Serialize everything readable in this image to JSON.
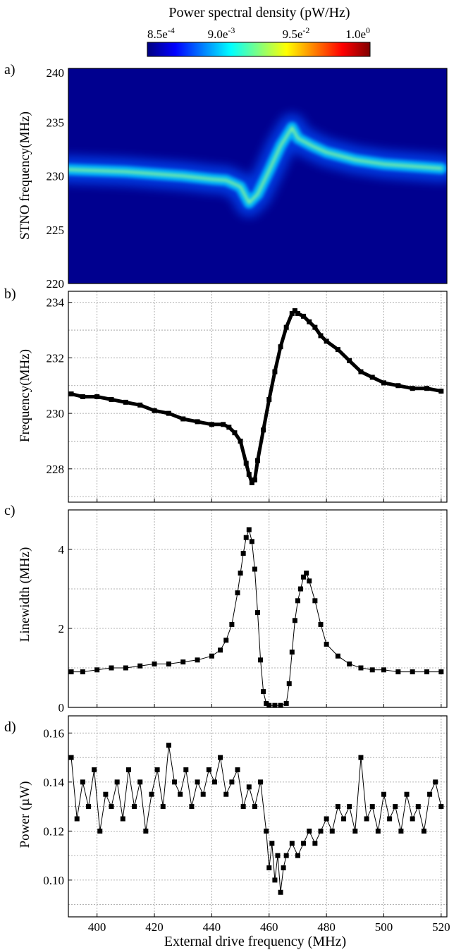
{
  "colorbar": {
    "title": "Power spectral density (pW/Hz)",
    "ticks": [
      {
        "mant": "8.5e",
        "exp": "-4"
      },
      {
        "mant": "9.0e",
        "exp": "-3"
      },
      {
        "mant": "9.5e",
        "exp": "-2"
      },
      {
        "mant": "1.0e",
        "exp": "0"
      }
    ],
    "colors": [
      "#00007f",
      "#0000ff",
      "#0080ff",
      "#00ffff",
      "#80ff80",
      "#ffff00",
      "#ff8000",
      "#ff0000",
      "#7f0000"
    ]
  },
  "x_axis": {
    "label": "External drive frequency (MHz)",
    "lim": [
      390,
      522
    ],
    "ticks": [
      400,
      420,
      440,
      460,
      480,
      500,
      520
    ]
  },
  "panels": [
    {
      "id": "a",
      "label": "a)",
      "ylabel": "STNO frequency(MHz)",
      "ticks": [
        220,
        225,
        230,
        235,
        240
      ]
    },
    {
      "id": "b",
      "label": "b)",
      "ylabel": "Frequency(MHz)",
      "ticks": [
        228,
        230,
        232,
        234
      ]
    },
    {
      "id": "c",
      "label": "c)",
      "ylabel": "Linewidth (MHz)",
      "ticks": [
        0,
        2,
        4
      ]
    },
    {
      "id": "d",
      "label": "d)",
      "ylabel": "Power (µW)",
      "ticks": [
        "0.10",
        "0.12",
        "0.14",
        "0.16"
      ]
    }
  ],
  "chart_data": [
    {
      "type": "heatmap",
      "ylabel": "STNO frequency(MHz)",
      "xlim": [
        390,
        522
      ],
      "ylim": [
        220,
        240
      ],
      "colorscale": "jet",
      "zlim": [
        0.00085,
        1.0
      ],
      "ridge": {
        "x": [
          390,
          400,
          410,
          420,
          430,
          440,
          445,
          450,
          453,
          456,
          460,
          464,
          468,
          470,
          475,
          480,
          490,
          500,
          510,
          520
        ],
        "y": [
          230.6,
          230.5,
          230.4,
          230.2,
          230.0,
          229.7,
          229.6,
          229.0,
          227.5,
          228.3,
          230.5,
          232.8,
          234.5,
          233.5,
          232.8,
          232.2,
          231.5,
          231.1,
          230.9,
          230.7
        ]
      }
    },
    {
      "type": "scatter",
      "ylabel": "Frequency(MHz)",
      "xlim": [
        390,
        522
      ],
      "ylim": [
        226.8,
        234.4
      ],
      "x": [
        391,
        395,
        400,
        405,
        410,
        415,
        420,
        425,
        430,
        435,
        440,
        444,
        446,
        448,
        450,
        452,
        453,
        454,
        455,
        456,
        458,
        460,
        462,
        464,
        466,
        468,
        469,
        470,
        472,
        474,
        476,
        478,
        480,
        484,
        488,
        492,
        496,
        500,
        505,
        510,
        515,
        520
      ],
      "y": [
        230.7,
        230.6,
        230.6,
        230.5,
        230.4,
        230.3,
        230.1,
        230.0,
        229.8,
        229.7,
        229.6,
        229.6,
        229.5,
        229.3,
        229.0,
        228.2,
        227.8,
        227.5,
        227.6,
        228.3,
        229.4,
        230.5,
        231.5,
        232.4,
        233.1,
        233.6,
        233.7,
        233.6,
        233.5,
        233.3,
        233.1,
        232.8,
        232.6,
        232.3,
        231.9,
        231.5,
        231.3,
        231.1,
        231.0,
        230.9,
        230.9,
        230.8
      ]
    },
    {
      "type": "line",
      "ylabel": "Linewidth (MHz)",
      "xlim": [
        390,
        522
      ],
      "ylim": [
        0,
        5.0
      ],
      "x": [
        391,
        395,
        400,
        405,
        410,
        415,
        420,
        425,
        430,
        435,
        440,
        443,
        445,
        447,
        449,
        450,
        451,
        452,
        453,
        454,
        455,
        456,
        457,
        458,
        459,
        460,
        462,
        464,
        466,
        467,
        468,
        469,
        470,
        471,
        472,
        473,
        474,
        476,
        478,
        480,
        484,
        488,
        492,
        496,
        500,
        505,
        510,
        515,
        520
      ],
      "y": [
        0.9,
        0.9,
        0.95,
        1.0,
        1.0,
        1.05,
        1.1,
        1.1,
        1.15,
        1.2,
        1.3,
        1.45,
        1.7,
        2.1,
        2.9,
        3.4,
        3.9,
        4.3,
        4.5,
        4.2,
        3.5,
        2.4,
        1.2,
        0.4,
        0.1,
        0.05,
        0.05,
        0.05,
        0.1,
        0.6,
        1.4,
        2.2,
        2.7,
        3.0,
        3.3,
        3.4,
        3.2,
        2.7,
        2.1,
        1.6,
        1.3,
        1.1,
        1.0,
        0.95,
        0.95,
        0.9,
        0.9,
        0.9,
        0.9
      ]
    },
    {
      "type": "line",
      "ylabel": "Power (µW)",
      "xlim": [
        390,
        522
      ],
      "ylim": [
        0.085,
        0.167
      ],
      "x": [
        391,
        393,
        395,
        397,
        399,
        401,
        403,
        405,
        407,
        409,
        411,
        413,
        415,
        417,
        419,
        421,
        423,
        425,
        427,
        429,
        431,
        433,
        435,
        437,
        439,
        441,
        443,
        445,
        447,
        449,
        451,
        453,
        455,
        457,
        459,
        460,
        461,
        462,
        463,
        464,
        465,
        466,
        468,
        470,
        472,
        474,
        476,
        478,
        480,
        482,
        484,
        486,
        488,
        490,
        492,
        494,
        496,
        498,
        500,
        502,
        504,
        506,
        508,
        510,
        512,
        514,
        516,
        518,
        520
      ],
      "y": [
        0.15,
        0.125,
        0.14,
        0.13,
        0.145,
        0.12,
        0.135,
        0.13,
        0.14,
        0.125,
        0.145,
        0.13,
        0.14,
        0.12,
        0.135,
        0.145,
        0.13,
        0.155,
        0.14,
        0.135,
        0.145,
        0.13,
        0.14,
        0.135,
        0.145,
        0.14,
        0.15,
        0.135,
        0.14,
        0.145,
        0.13,
        0.138,
        0.13,
        0.14,
        0.12,
        0.105,
        0.115,
        0.1,
        0.11,
        0.095,
        0.105,
        0.11,
        0.115,
        0.11,
        0.115,
        0.12,
        0.115,
        0.12,
        0.125,
        0.12,
        0.13,
        0.125,
        0.13,
        0.12,
        0.15,
        0.125,
        0.13,
        0.12,
        0.135,
        0.125,
        0.13,
        0.12,
        0.135,
        0.125,
        0.13,
        0.12,
        0.135,
        0.14,
        0.13
      ]
    }
  ]
}
